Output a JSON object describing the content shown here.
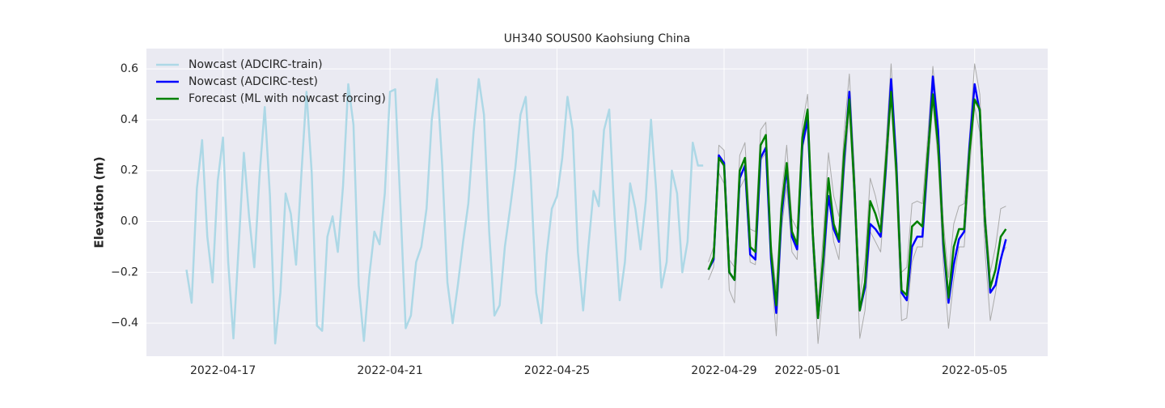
{
  "chart_data": {
    "type": "line",
    "title": "UH340 SOUS00 Kaohsiung China",
    "y_label": "Elevation (m)",
    "x": [
      "2022-04-16 03:00",
      "2022-04-16 06:00",
      "2022-04-16 09:00",
      "2022-04-16 12:00",
      "2022-04-16 15:00",
      "2022-04-16 18:00",
      "2022-04-16 21:00",
      "2022-04-17 00:00",
      "2022-04-17 03:00",
      "2022-04-17 06:00",
      "2022-04-17 09:00",
      "2022-04-17 12:00",
      "2022-04-17 15:00",
      "2022-04-17 18:00",
      "2022-04-17 21:00",
      "2022-04-18 00:00",
      "2022-04-18 03:00",
      "2022-04-18 06:00",
      "2022-04-18 09:00",
      "2022-04-18 12:00",
      "2022-04-18 15:00",
      "2022-04-18 18:00",
      "2022-04-18 21:00",
      "2022-04-19 00:00",
      "2022-04-19 03:00",
      "2022-04-19 06:00",
      "2022-04-19 09:00",
      "2022-04-19 12:00",
      "2022-04-19 15:00",
      "2022-04-19 18:00",
      "2022-04-19 21:00",
      "2022-04-20 00:00",
      "2022-04-20 03:00",
      "2022-04-20 06:00",
      "2022-04-20 09:00",
      "2022-04-20 12:00",
      "2022-04-20 15:00",
      "2022-04-20 18:00",
      "2022-04-20 21:00",
      "2022-04-21 00:00",
      "2022-04-21 03:00",
      "2022-04-21 06:00",
      "2022-04-21 09:00",
      "2022-04-21 12:00",
      "2022-04-21 15:00",
      "2022-04-21 18:00",
      "2022-04-21 21:00",
      "2022-04-22 00:00",
      "2022-04-22 03:00",
      "2022-04-22 06:00",
      "2022-04-22 09:00",
      "2022-04-22 12:00",
      "2022-04-22 15:00",
      "2022-04-22 18:00",
      "2022-04-22 21:00",
      "2022-04-23 00:00",
      "2022-04-23 03:00",
      "2022-04-23 06:00",
      "2022-04-23 09:00",
      "2022-04-23 12:00",
      "2022-04-23 15:00",
      "2022-04-23 18:00",
      "2022-04-23 21:00",
      "2022-04-24 00:00",
      "2022-04-24 03:00",
      "2022-04-24 06:00",
      "2022-04-24 09:00",
      "2022-04-24 12:00",
      "2022-04-24 15:00",
      "2022-04-24 18:00",
      "2022-04-24 21:00",
      "2022-04-25 00:00",
      "2022-04-25 03:00",
      "2022-04-25 06:00",
      "2022-04-25 09:00",
      "2022-04-25 12:00",
      "2022-04-25 15:00",
      "2022-04-25 18:00",
      "2022-04-25 21:00",
      "2022-04-26 00:00",
      "2022-04-26 03:00",
      "2022-04-26 06:00",
      "2022-04-26 09:00",
      "2022-04-26 12:00",
      "2022-04-26 15:00",
      "2022-04-26 18:00",
      "2022-04-26 21:00",
      "2022-04-27 00:00",
      "2022-04-27 03:00",
      "2022-04-27 06:00",
      "2022-04-27 09:00",
      "2022-04-27 12:00",
      "2022-04-27 15:00",
      "2022-04-27 18:00",
      "2022-04-27 21:00",
      "2022-04-28 00:00",
      "2022-04-28 03:00",
      "2022-04-28 06:00",
      "2022-04-28 09:00",
      "2022-04-28 12:00",
      "2022-04-28 15:00",
      "2022-04-28 18:00",
      "2022-04-28 21:00",
      "2022-04-29 00:00",
      "2022-04-29 03:00",
      "2022-04-29 06:00",
      "2022-04-29 09:00",
      "2022-04-29 12:00",
      "2022-04-29 15:00",
      "2022-04-29 18:00",
      "2022-04-29 21:00",
      "2022-04-30 00:00",
      "2022-04-30 03:00",
      "2022-04-30 06:00",
      "2022-04-30 09:00",
      "2022-04-30 12:00",
      "2022-04-30 15:00",
      "2022-04-30 18:00",
      "2022-04-30 21:00",
      "2022-05-01 00:00",
      "2022-05-01 03:00",
      "2022-05-01 06:00",
      "2022-05-01 09:00",
      "2022-05-01 12:00",
      "2022-05-01 15:00",
      "2022-05-01 18:00",
      "2022-05-01 21:00",
      "2022-05-02 00:00",
      "2022-05-02 03:00",
      "2022-05-02 06:00",
      "2022-05-02 09:00",
      "2022-05-02 12:00",
      "2022-05-02 15:00",
      "2022-05-02 18:00",
      "2022-05-02 21:00",
      "2022-05-03 00:00",
      "2022-05-03 03:00",
      "2022-05-03 06:00",
      "2022-05-03 09:00",
      "2022-05-03 12:00",
      "2022-05-03 15:00",
      "2022-05-03 18:00",
      "2022-05-03 21:00",
      "2022-05-04 00:00",
      "2022-05-04 03:00",
      "2022-05-04 06:00",
      "2022-05-04 09:00",
      "2022-05-04 12:00",
      "2022-05-04 15:00",
      "2022-05-04 18:00",
      "2022-05-04 21:00",
      "2022-05-05 00:00",
      "2022-05-05 03:00",
      "2022-05-05 06:00",
      "2022-05-05 09:00",
      "2022-05-05 12:00",
      "2022-05-05 15:00",
      "2022-05-05 18:00"
    ],
    "series": [
      {
        "name": "Nowcast (ADCIRC-train)",
        "color": "#add8e6",
        "width": 2.5,
        "values": [
          -0.19,
          -0.32,
          0.13,
          0.32,
          -0.06,
          -0.24,
          0.16,
          0.33,
          -0.16,
          -0.46,
          -0.1,
          0.27,
          0.02,
          -0.18,
          0.18,
          0.45,
          0.1,
          -0.48,
          -0.28,
          0.11,
          0.03,
          -0.17,
          0.18,
          0.51,
          0.19,
          -0.41,
          -0.43,
          -0.06,
          0.02,
          -0.12,
          0.14,
          0.54,
          0.38,
          -0.25,
          -0.47,
          -0.22,
          -0.04,
          -0.09,
          0.11,
          0.51,
          0.52,
          0.06,
          -0.42,
          -0.37,
          -0.16,
          -0.1,
          0.05,
          0.4,
          0.56,
          0.22,
          -0.24,
          -0.4,
          -0.25,
          -0.08,
          0.07,
          0.35,
          0.56,
          0.42,
          -0.04,
          -0.37,
          -0.33,
          -0.1,
          0.05,
          0.21,
          0.42,
          0.49,
          0.16,
          -0.28,
          -0.4,
          -0.13,
          0.05,
          0.1,
          0.25,
          0.49,
          0.36,
          -0.12,
          -0.35,
          -0.1,
          0.12,
          0.06,
          0.36,
          0.44,
          0.02,
          -0.31,
          -0.16,
          0.15,
          0.05,
          -0.11,
          0.08,
          0.4,
          0.12,
          -0.26,
          -0.16,
          0.2,
          0.11,
          -0.2,
          -0.08,
          0.31,
          0.22,
          0.22,
          null,
          null,
          null,
          null,
          null,
          null,
          null,
          null,
          null,
          null,
          null,
          null,
          null,
          null,
          null,
          null,
          null,
          null,
          null,
          null,
          null,
          null,
          null,
          null,
          null,
          null,
          null,
          null,
          null,
          null,
          null,
          null,
          null,
          null,
          null,
          null,
          null,
          null,
          null,
          null,
          null,
          null,
          null,
          null,
          null,
          null,
          null,
          null,
          null,
          null,
          null,
          null,
          null,
          null,
          null,
          null,
          null,
          null
        ]
      },
      {
        "color": "#aaaaaa",
        "width": 1,
        "values": [
          null,
          null,
          null,
          null,
          null,
          null,
          null,
          null,
          null,
          null,
          null,
          null,
          null,
          null,
          null,
          null,
          null,
          null,
          null,
          null,
          null,
          null,
          null,
          null,
          null,
          null,
          null,
          null,
          null,
          null,
          null,
          null,
          null,
          null,
          null,
          null,
          null,
          null,
          null,
          null,
          null,
          null,
          null,
          null,
          null,
          null,
          null,
          null,
          null,
          null,
          null,
          null,
          null,
          null,
          null,
          null,
          null,
          null,
          null,
          null,
          null,
          null,
          null,
          null,
          null,
          null,
          null,
          null,
          null,
          null,
          null,
          null,
          null,
          null,
          null,
          null,
          null,
          null,
          null,
          null,
          null,
          null,
          null,
          null,
          null,
          null,
          null,
          null,
          null,
          null,
          null,
          null,
          null,
          null,
          null,
          null,
          null,
          null,
          null,
          null,
          -0.16,
          -0.1,
          0.3,
          0.28,
          -0.15,
          -0.18,
          0.26,
          0.31,
          -0.03,
          -0.04,
          0.36,
          0.39,
          -0.08,
          -0.27,
          0.1,
          0.3,
          0.01,
          -0.03,
          0.38,
          0.5,
          0.0,
          -0.33,
          -0.05,
          0.27,
          0.1,
          0.02,
          0.35,
          0.58,
          0.2,
          -0.3,
          -0.15,
          0.17,
          0.1,
          0.0,
          0.3,
          0.62,
          0.28,
          -0.2,
          -0.18,
          0.07,
          0.08,
          0.07,
          0.33,
          0.61,
          0.4,
          0.0,
          -0.22,
          -0.01,
          0.06,
          0.07,
          0.33,
          0.62,
          0.5,
          0.05,
          -0.2,
          -0.1,
          0.05,
          0.06
        ]
      },
      {
        "color": "#aaaaaa",
        "width": 1,
        "values": [
          null,
          null,
          null,
          null,
          null,
          null,
          null,
          null,
          null,
          null,
          null,
          null,
          null,
          null,
          null,
          null,
          null,
          null,
          null,
          null,
          null,
          null,
          null,
          null,
          null,
          null,
          null,
          null,
          null,
          null,
          null,
          null,
          null,
          null,
          null,
          null,
          null,
          null,
          null,
          null,
          null,
          null,
          null,
          null,
          null,
          null,
          null,
          null,
          null,
          null,
          null,
          null,
          null,
          null,
          null,
          null,
          null,
          null,
          null,
          null,
          null,
          null,
          null,
          null,
          null,
          null,
          null,
          null,
          null,
          null,
          null,
          null,
          null,
          null,
          null,
          null,
          null,
          null,
          null,
          null,
          null,
          null,
          null,
          null,
          null,
          null,
          null,
          null,
          null,
          null,
          null,
          null,
          null,
          null,
          null,
          null,
          null,
          null,
          null,
          null,
          -0.23,
          -0.18,
          0.19,
          0.15,
          -0.27,
          -0.32,
          0.13,
          0.17,
          -0.16,
          -0.17,
          0.24,
          0.27,
          -0.18,
          -0.45,
          -0.03,
          0.14,
          -0.12,
          -0.15,
          0.28,
          0.39,
          -0.12,
          -0.48,
          -0.27,
          0.1,
          -0.08,
          -0.15,
          0.18,
          0.44,
          0.04,
          -0.46,
          -0.35,
          -0.04,
          -0.08,
          -0.12,
          0.16,
          0.48,
          0.13,
          -0.39,
          -0.38,
          -0.16,
          -0.1,
          -0.1,
          0.18,
          0.47,
          0.24,
          -0.17,
          -0.42,
          -0.23,
          -0.1,
          -0.1,
          0.2,
          0.45,
          0.35,
          -0.12,
          -0.39,
          -0.28,
          -0.14,
          -0.1
        ]
      },
      {
        "name": "Nowcast (ADCIRC-test)",
        "color": "#0000ff",
        "width": 2.5,
        "values": [
          null,
          null,
          null,
          null,
          null,
          null,
          null,
          null,
          null,
          null,
          null,
          null,
          null,
          null,
          null,
          null,
          null,
          null,
          null,
          null,
          null,
          null,
          null,
          null,
          null,
          null,
          null,
          null,
          null,
          null,
          null,
          null,
          null,
          null,
          null,
          null,
          null,
          null,
          null,
          null,
          null,
          null,
          null,
          null,
          null,
          null,
          null,
          null,
          null,
          null,
          null,
          null,
          null,
          null,
          null,
          null,
          null,
          null,
          null,
          null,
          null,
          null,
          null,
          null,
          null,
          null,
          null,
          null,
          null,
          null,
          null,
          null,
          null,
          null,
          null,
          null,
          null,
          null,
          null,
          null,
          null,
          null,
          null,
          null,
          null,
          null,
          null,
          null,
          null,
          null,
          null,
          null,
          null,
          null,
          null,
          null,
          null,
          null,
          null,
          null,
          -0.19,
          -0.15,
          0.26,
          0.23,
          -0.2,
          -0.23,
          0.17,
          0.22,
          -0.13,
          -0.15,
          0.25,
          0.29,
          -0.15,
          -0.36,
          0.02,
          0.21,
          -0.06,
          -0.11,
          0.3,
          0.4,
          -0.05,
          -0.38,
          -0.16,
          0.1,
          -0.03,
          -0.08,
          0.24,
          0.51,
          0.12,
          -0.35,
          -0.26,
          -0.01,
          -0.03,
          -0.06,
          0.21,
          0.56,
          0.23,
          -0.28,
          -0.31,
          -0.1,
          -0.06,
          -0.06,
          0.24,
          0.57,
          0.36,
          -0.09,
          -0.32,
          -0.17,
          -0.07,
          -0.04,
          0.29,
          0.54,
          0.43,
          0.0,
          -0.28,
          -0.25,
          -0.15,
          -0.07
        ]
      },
      {
        "name": "Forecast (ML with nowcast forcing)",
        "color": "#008000",
        "width": 2.5,
        "values": [
          null,
          null,
          null,
          null,
          null,
          null,
          null,
          null,
          null,
          null,
          null,
          null,
          null,
          null,
          null,
          null,
          null,
          null,
          null,
          null,
          null,
          null,
          null,
          null,
          null,
          null,
          null,
          null,
          null,
          null,
          null,
          null,
          null,
          null,
          null,
          null,
          null,
          null,
          null,
          null,
          null,
          null,
          null,
          null,
          null,
          null,
          null,
          null,
          null,
          null,
          null,
          null,
          null,
          null,
          null,
          null,
          null,
          null,
          null,
          null,
          null,
          null,
          null,
          null,
          null,
          null,
          null,
          null,
          null,
          null,
          null,
          null,
          null,
          null,
          null,
          null,
          null,
          null,
          null,
          null,
          null,
          null,
          null,
          null,
          null,
          null,
          null,
          null,
          null,
          null,
          null,
          null,
          null,
          null,
          null,
          null,
          null,
          null,
          null,
          null,
          -0.19,
          -0.14,
          0.25,
          0.22,
          -0.2,
          -0.23,
          0.2,
          0.25,
          -0.1,
          -0.12,
          0.3,
          0.34,
          -0.12,
          -0.33,
          0.05,
          0.23,
          -0.04,
          -0.09,
          0.33,
          0.44,
          -0.05,
          -0.38,
          -0.14,
          0.17,
          -0.01,
          -0.07,
          0.27,
          0.48,
          0.12,
          -0.35,
          -0.24,
          0.08,
          0.03,
          -0.04,
          0.23,
          0.51,
          0.2,
          -0.27,
          -0.29,
          -0.02,
          0.0,
          -0.02,
          0.26,
          0.5,
          0.3,
          -0.07,
          -0.3,
          -0.1,
          -0.03,
          -0.03,
          0.27,
          0.48,
          0.44,
          0.0,
          -0.26,
          -0.19,
          -0.06,
          -0.03
        ]
      }
    ],
    "xlim": [
      "2022-04-15 04:00",
      "2022-05-06 18:00"
    ],
    "xticks": [
      "2022-04-17",
      "2022-04-21",
      "2022-04-25",
      "2022-04-29",
      "2022-05-01",
      "2022-05-05"
    ],
    "ylim": [
      -0.53,
      0.68
    ],
    "yticks": [
      {
        "value": -0.4,
        "label": "−0.4"
      },
      {
        "value": -0.2,
        "label": "−0.2"
      },
      {
        "value": 0,
        "label": "0.0"
      },
      0.2,
      0.4,
      0.6
    ],
    "grid": true,
    "legend": "upper left"
  }
}
